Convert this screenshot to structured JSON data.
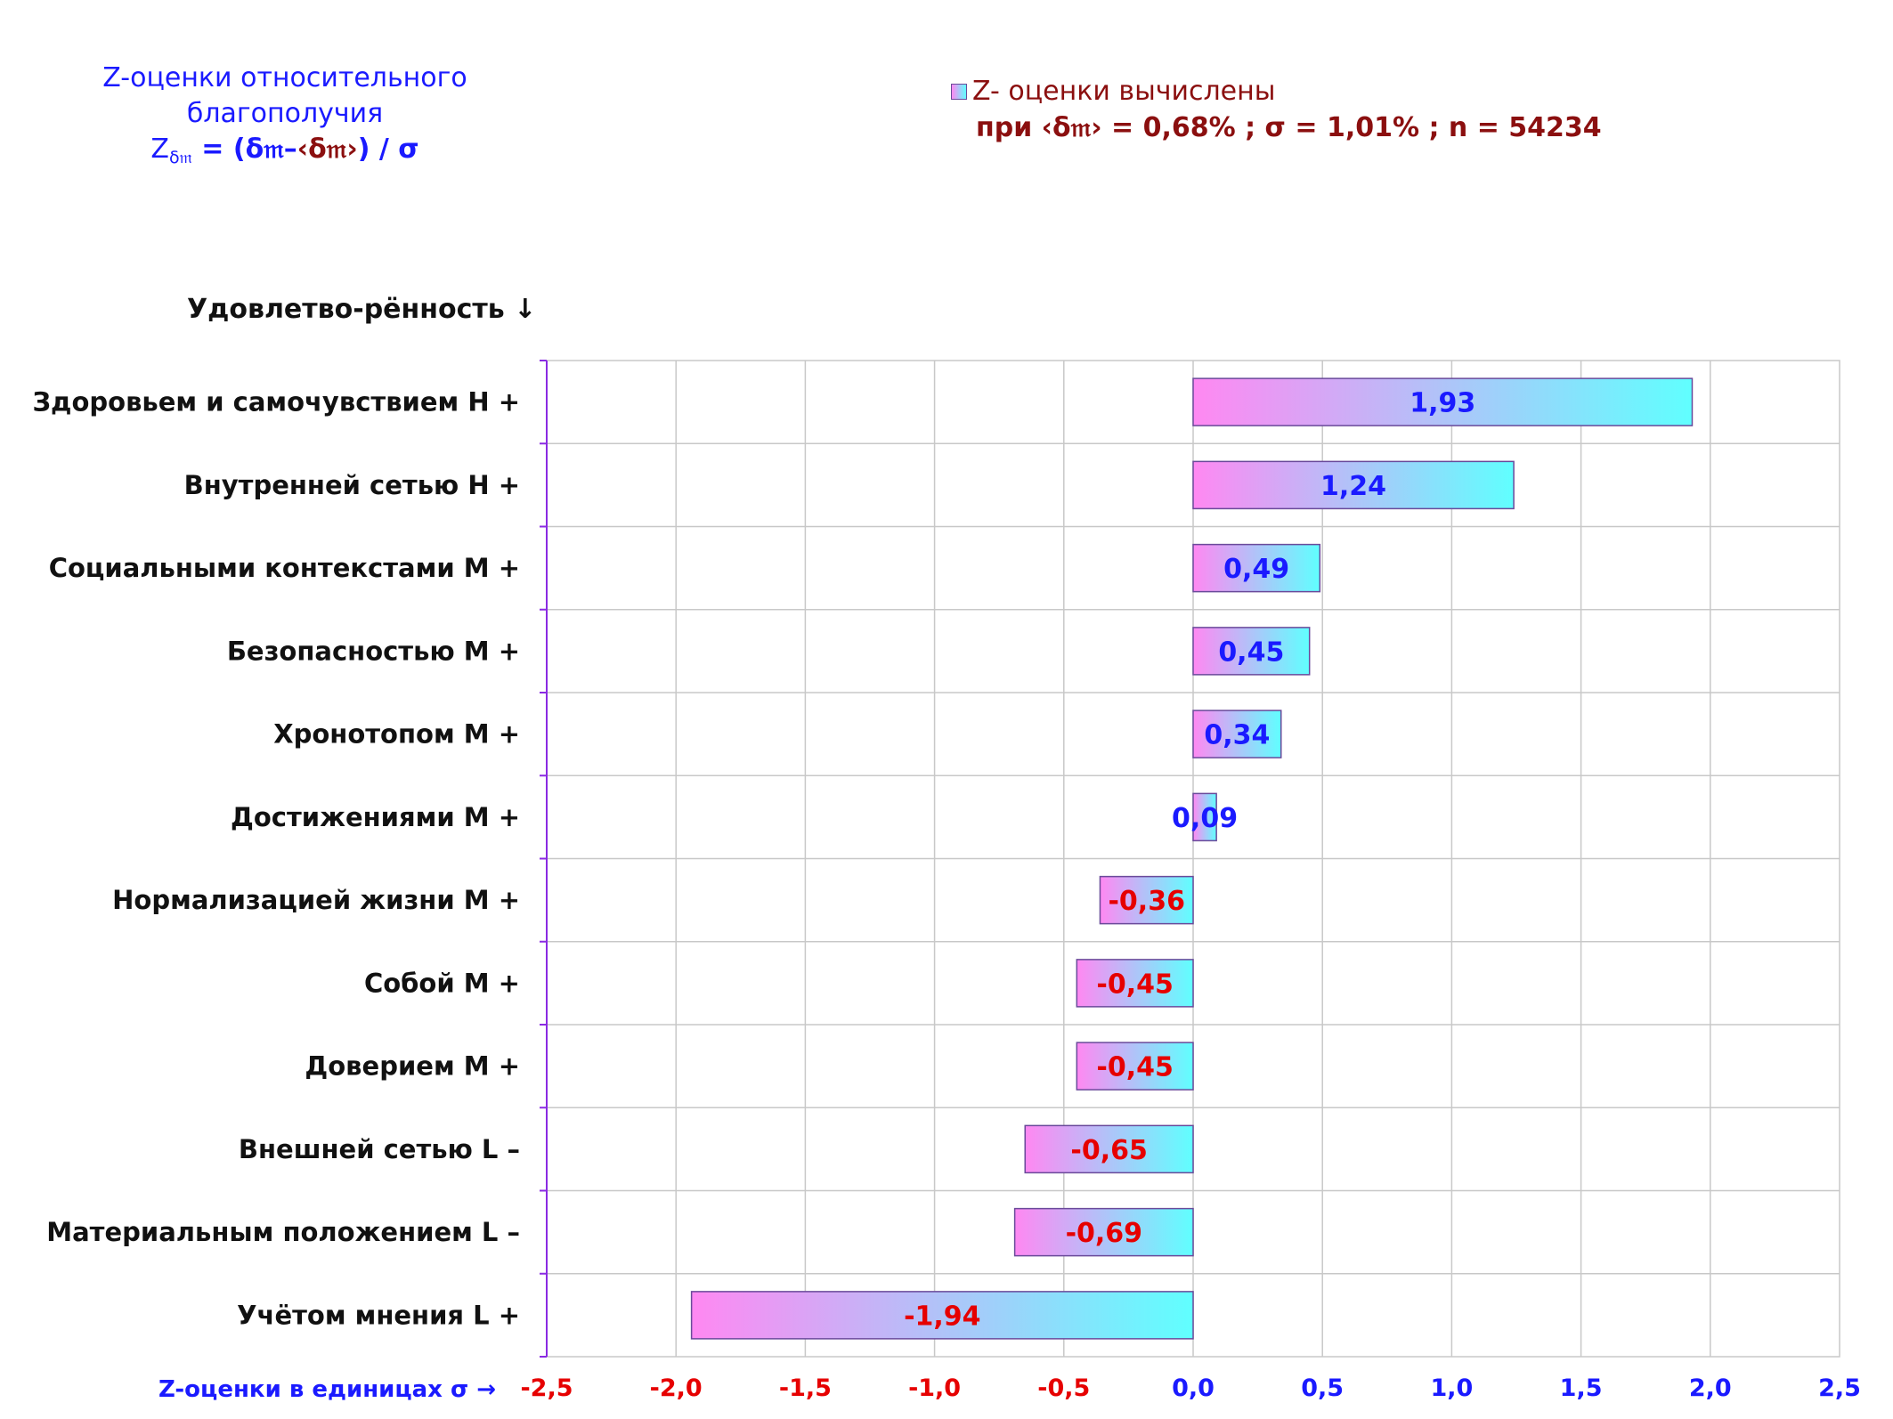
{
  "title": {
    "line1": "Z-оценки  относительного",
    "line2": "благополучия",
    "formula_z": "Z",
    "formula_sub": "δ𝔪",
    "formula_eq": " = (δ𝔪–",
    "formula_mean": "‹δ𝔪›",
    "formula_tail": ") / σ"
  },
  "legend": {
    "entry": "Z- оценки вычислены",
    "params": "при ‹δ𝔪› = 0,68% ; σ = 1,01% ; n = 54234"
  },
  "y_title": "Удовлетво-рённость ↓",
  "x_title": "Z-оценки в единицах σ →",
  "colors": {
    "gradient_left": "#ff88f2",
    "gradient_right": "#60ffff",
    "bar_border": "#6a4a9a",
    "positive_text": "#1a1aff",
    "negative_text": "#e60000",
    "grid": "#c8c8c8",
    "axis": "#8a2be2"
  },
  "chart_data": {
    "type": "bar",
    "orientation": "horizontal",
    "categories": [
      "Здоровьем и самочувствием  H +",
      "Внутренней сетью  H +",
      "Социальными контекстами  M +",
      "Безопасностью  M +",
      "Хронотопом  M +",
      "Достижениями  M +",
      "Нормализацией жизни  M +",
      "Собой  M +",
      "Доверием  M +",
      "Внешней сетью  L –",
      "Материальным положением  L –",
      "Учётом мнения  L +"
    ],
    "values": [
      1.93,
      1.24,
      0.49,
      0.45,
      0.34,
      0.09,
      -0.36,
      -0.45,
      -0.45,
      -0.65,
      -0.69,
      -1.94
    ],
    "value_labels": [
      "1,93",
      "1,24",
      "0,49",
      "0,45",
      "0,34",
      "0,09",
      "-0,36",
      "-0,45",
      "-0,45",
      "-0,65",
      "-0,69",
      "-1,94"
    ],
    "xlim": [
      -2.5,
      2.5
    ],
    "ticks": [
      -2.5,
      -2.0,
      -1.5,
      -1.0,
      -0.5,
      0.0,
      0.5,
      1.0,
      1.5,
      2.0,
      2.5
    ],
    "tick_labels": [
      "-2,5",
      "-2,0",
      "-1,5",
      "-1,0",
      "-0,5",
      "0,0",
      "0,5",
      "1,0",
      "1,5",
      "2,0",
      "2,5"
    ],
    "grid": true
  }
}
